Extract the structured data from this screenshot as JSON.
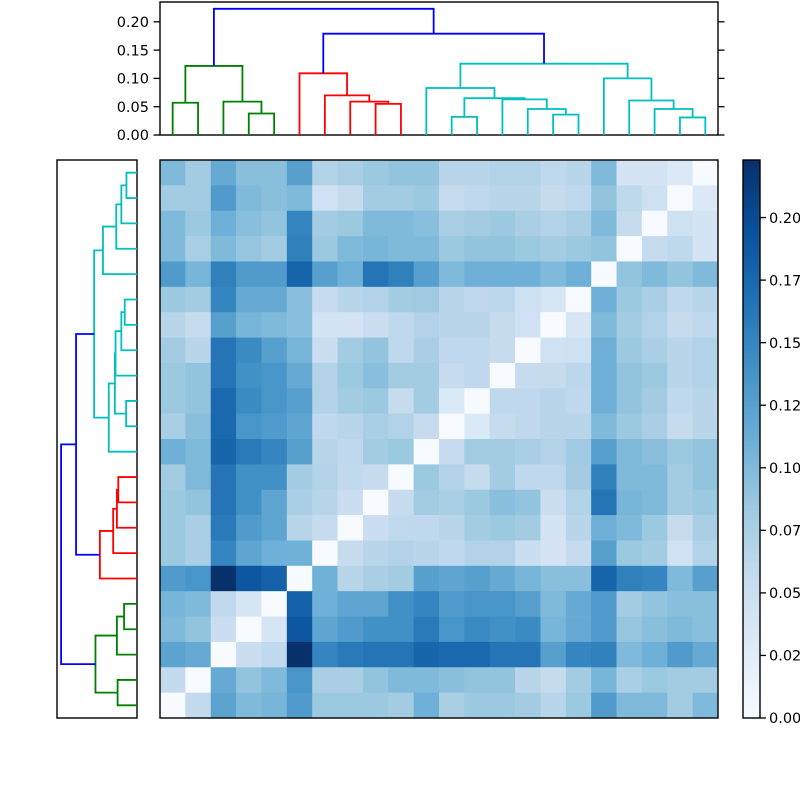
{
  "chart_data": {
    "type": "heatmap",
    "subtype": "clustered-distance-matrix-with-dendrograms",
    "n_leaves": 22,
    "vmin": 0.0,
    "vmax": 0.223,
    "row_display_order": "reversed",
    "colormap": {
      "name": "Blues",
      "stops": [
        [
          0.0,
          "#f7fbff"
        ],
        [
          0.125,
          "#deebf7"
        ],
        [
          0.25,
          "#c6dbef"
        ],
        [
          0.375,
          "#9ecae1"
        ],
        [
          0.5,
          "#6baed6"
        ],
        [
          0.625,
          "#4292c6"
        ],
        [
          0.75,
          "#2171b5"
        ],
        [
          0.875,
          "#08519c"
        ],
        [
          1.0,
          "#08306b"
        ]
      ]
    },
    "matrix_upper": [
      [
        0.057,
        0.122,
        0.1,
        0.105,
        0.13,
        0.085,
        0.085,
        0.085,
        0.08,
        0.11,
        0.075,
        0.085,
        0.085,
        0.08,
        0.065,
        0.085,
        0.13,
        0.1,
        0.1,
        0.08,
        0.1
      ],
      [
        0.115,
        0.09,
        0.1,
        0.135,
        0.075,
        0.075,
        0.09,
        0.1,
        0.1,
        0.095,
        0.09,
        0.09,
        0.065,
        0.055,
        0.08,
        0.105,
        0.075,
        0.085,
        0.08,
        0.08
      ],
      [
        0.05,
        0.059,
        0.223,
        0.15,
        0.16,
        0.165,
        0.165,
        0.178,
        0.175,
        0.175,
        0.165,
        0.165,
        0.125,
        0.15,
        0.155,
        0.1,
        0.11,
        0.13,
        0.115
      ],
      [
        0.038,
        0.19,
        0.12,
        0.13,
        0.14,
        0.14,
        0.16,
        0.135,
        0.145,
        0.14,
        0.145,
        0.105,
        0.115,
        0.13,
        0.088,
        0.095,
        0.1,
        0.095
      ],
      [
        0.18,
        0.11,
        0.12,
        0.12,
        0.14,
        0.15,
        0.13,
        0.135,
        0.135,
        0.125,
        0.1,
        0.115,
        0.13,
        0.08,
        0.09,
        0.095,
        0.095
      ],
      [
        0.109,
        0.065,
        0.075,
        0.08,
        0.125,
        0.12,
        0.125,
        0.115,
        0.105,
        0.095,
        0.095,
        0.179,
        0.155,
        0.15,
        0.1,
        0.125
      ],
      [
        0.055,
        0.065,
        0.07,
        0.065,
        0.06,
        0.07,
        0.07,
        0.05,
        0.04,
        0.055,
        0.125,
        0.085,
        0.08,
        0.045,
        0.07
      ],
      [
        0.05,
        0.059,
        0.06,
        0.065,
        0.08,
        0.085,
        0.08,
        0.04,
        0.065,
        0.11,
        0.1,
        0.085,
        0.055,
        0.075
      ],
      [
        0.055,
        0.08,
        0.075,
        0.085,
        0.095,
        0.09,
        0.05,
        0.07,
        0.165,
        0.105,
        0.1,
        0.08,
        0.085
      ],
      [
        0.085,
        0.07,
        0.055,
        0.08,
        0.06,
        0.06,
        0.08,
        0.155,
        0.1,
        0.1,
        0.08,
        0.09
      ],
      [
        0.055,
        0.08,
        0.08,
        0.075,
        0.07,
        0.083,
        0.126,
        0.1,
        0.095,
        0.085,
        0.09
      ],
      [
        0.032,
        0.055,
        0.06,
        0.065,
        0.065,
        0.1,
        0.085,
        0.075,
        0.055,
        0.065
      ],
      [
        0.06,
        0.06,
        0.065,
        0.06,
        0.11,
        0.09,
        0.08,
        0.06,
        0.065
      ],
      [
        0.055,
        0.055,
        0.063,
        0.11,
        0.09,
        0.085,
        0.065,
        0.07
      ],
      [
        0.045,
        0.046,
        0.11,
        0.085,
        0.075,
        0.065,
        0.07
      ],
      [
        0.036,
        0.1,
        0.08,
        0.07,
        0.055,
        0.06
      ],
      [
        0.11,
        0.085,
        0.075,
        0.06,
        0.065
      ],
      [
        0.09,
        0.1,
        0.09,
        0.1
      ],
      [
        0.055,
        0.061,
        0.04
      ],
      [
        0.046,
        0.04
      ],
      [
        0.031
      ]
    ],
    "link_colors": {
      "green": "#008000",
      "red": "#ff0000",
      "cyan": "#00bfbf",
      "blue": "#0000ff"
    },
    "dendrogram_links": [
      {
        "x1": 3,
        "y1": 0,
        "x2": 4,
        "y2": 0,
        "h": 0.038,
        "c": "green"
      },
      {
        "x1": 2,
        "y1": 0,
        "x2": 3.5,
        "y2": 0.038,
        "h": 0.059,
        "c": "green"
      },
      {
        "x1": 0,
        "y1": 0,
        "x2": 1,
        "y2": 0,
        "h": 0.057,
        "c": "green"
      },
      {
        "x1": 0.5,
        "y1": 0.057,
        "x2": 2.75,
        "y2": 0.059,
        "h": 0.122,
        "c": "green"
      },
      {
        "x1": 8,
        "y1": 0,
        "x2": 9,
        "y2": 0,
        "h": 0.055,
        "c": "red"
      },
      {
        "x1": 7,
        "y1": 0,
        "x2": 8.5,
        "y2": 0.055,
        "h": 0.059,
        "c": "red"
      },
      {
        "x1": 6,
        "y1": 0,
        "x2": 7.75,
        "y2": 0.059,
        "h": 0.07,
        "c": "red"
      },
      {
        "x1": 5,
        "y1": 0,
        "x2": 6.875,
        "y2": 0.07,
        "h": 0.109,
        "c": "red"
      },
      {
        "x1": 11,
        "y1": 0,
        "x2": 12,
        "y2": 0,
        "h": 0.032,
        "c": "cyan"
      },
      {
        "x1": 15,
        "y1": 0,
        "x2": 16,
        "y2": 0,
        "h": 0.036,
        "c": "cyan"
      },
      {
        "x1": 14,
        "y1": 0,
        "x2": 15.5,
        "y2": 0.036,
        "h": 0.046,
        "c": "cyan"
      },
      {
        "x1": 13,
        "y1": 0,
        "x2": 14.75,
        "y2": 0.046,
        "h": 0.063,
        "c": "cyan"
      },
      {
        "x1": 11.5,
        "y1": 0.032,
        "x2": 13.875,
        "y2": 0.063,
        "h": 0.065,
        "c": "cyan"
      },
      {
        "x1": 10,
        "y1": 0,
        "x2": 12.6875,
        "y2": 0.065,
        "h": 0.083,
        "c": "cyan"
      },
      {
        "x1": 20,
        "y1": 0,
        "x2": 21,
        "y2": 0,
        "h": 0.031,
        "c": "cyan"
      },
      {
        "x1": 19,
        "y1": 0,
        "x2": 20.5,
        "y2": 0.031,
        "h": 0.046,
        "c": "cyan"
      },
      {
        "x1": 18,
        "y1": 0,
        "x2": 19.75,
        "y2": 0.046,
        "h": 0.061,
        "c": "cyan"
      },
      {
        "x1": 17,
        "y1": 0,
        "x2": 18.875,
        "y2": 0.061,
        "h": 0.1,
        "c": "cyan"
      },
      {
        "x1": 11.34375,
        "y1": 0.083,
        "x2": 17.9375,
        "y2": 0.1,
        "h": 0.126,
        "c": "cyan"
      },
      {
        "x1": 5.9375,
        "y1": 0.109,
        "x2": 14.640625,
        "y2": 0.126,
        "h": 0.179,
        "c": "blue"
      },
      {
        "x1": 1.625,
        "y1": 0.122,
        "x2": 10.2890625,
        "y2": 0.179,
        "h": 0.223,
        "c": "blue"
      }
    ],
    "top_axis": {
      "ylim": [
        0,
        0.235
      ],
      "ticks": [
        {
          "v": 0.0,
          "label": "0.00"
        },
        {
          "v": 0.05,
          "label": "0.05"
        },
        {
          "v": 0.1,
          "label": "0.10"
        },
        {
          "v": 0.15,
          "label": "0.15"
        },
        {
          "v": 0.2,
          "label": "0.20"
        }
      ]
    },
    "left_axis": {
      "xlim": [
        0,
        0.235
      ]
    },
    "colorbar": {
      "ticks": [
        {
          "v": 0.0,
          "label": "0.00"
        },
        {
          "v": 0.025,
          "label": "0.02"
        },
        {
          "v": 0.05,
          "label": "0.05"
        },
        {
          "v": 0.075,
          "label": "0.07"
        },
        {
          "v": 0.1,
          "label": "0.10"
        },
        {
          "v": 0.125,
          "label": "0.12"
        },
        {
          "v": 0.15,
          "label": "0.15"
        },
        {
          "v": 0.175,
          "label": "0.17"
        },
        {
          "v": 0.2,
          "label": "0.20"
        }
      ]
    }
  }
}
